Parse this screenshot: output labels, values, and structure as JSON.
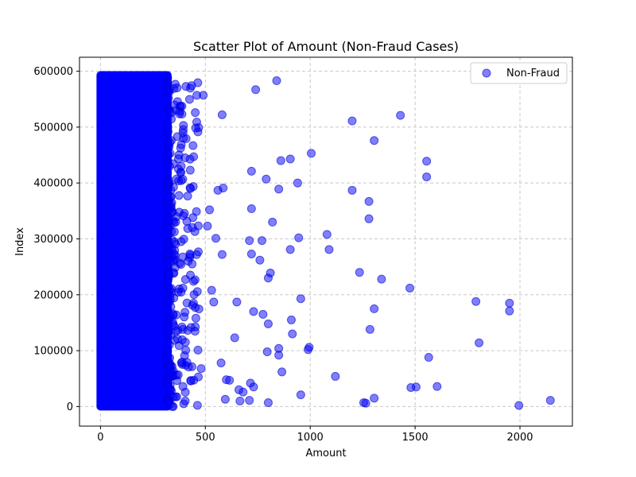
{
  "chart_data": {
    "type": "scatter",
    "title": "Scatter Plot of Amount (Non-Fraud Cases)",
    "xlabel": "Amount",
    "ylabel": "Index",
    "xlim": [
      -100,
      2250
    ],
    "ylim": [
      -35000,
      625000
    ],
    "xticks": [
      0,
      500,
      1000,
      1500,
      2000
    ],
    "yticks": [
      0,
      100000,
      200000,
      300000,
      400000,
      500000,
      600000
    ],
    "grid": true,
    "legend_position": "top-right",
    "colors": {
      "marker_fill": "#0000ff",
      "marker_edge": "#0000cc",
      "grid": "#c8c8c8"
    },
    "dense_band": {
      "x_range": [
        0,
        320
      ],
      "y_range": [
        0,
        593000
      ],
      "description_series": "Non-Fraud"
    },
    "series": [
      {
        "name": "Non-Fraud",
        "x": [
          490,
          740,
          840,
          580,
          1200,
          1430,
          1305,
          1005,
          905,
          860,
          1555,
          720,
          940,
          1555,
          790,
          850,
          560,
          585,
          1200,
          1280,
          520,
          720,
          820,
          510,
          1280,
          945,
          1080,
          550,
          710,
          770,
          580,
          905,
          1090,
          720,
          760,
          810,
          1235,
          800,
          1340,
          1475,
          530,
          955,
          540,
          650,
          1305,
          1790,
          1950,
          1950,
          775,
          910,
          730,
          1285,
          800,
          915,
          640,
          1805,
          995,
          990,
          850,
          795,
          850,
          1565,
          865,
          480,
          575,
          1120,
          600,
          615,
          715,
          730,
          660,
          680,
          955,
          1505,
          1480,
          1605,
          1305,
          595,
          665,
          710,
          800,
          1255,
          1265,
          1995,
          2145
        ],
        "y": [
          557000,
          567000,
          583000,
          522000,
          511000,
          521000,
          476000,
          453000,
          443000,
          440000,
          439000,
          421000,
          400000,
          411000,
          407000,
          389000,
          387000,
          391000,
          387000,
          367000,
          352000,
          354000,
          330000,
          323000,
          336000,
          302000,
          308000,
          301000,
          297000,
          297000,
          272000,
          281000,
          281000,
          273000,
          262000,
          239000,
          240000,
          230000,
          228000,
          212000,
          208000,
          193000,
          187000,
          187000,
          175000,
          188000,
          185000,
          171000,
          165000,
          155000,
          170000,
          138000,
          148000,
          130000,
          123000,
          114000,
          106000,
          102000,
          104000,
          98000,
          92000,
          88000,
          62000,
          68000,
          78000,
          54000,
          48000,
          47000,
          42000,
          35000,
          30000,
          26000,
          21000,
          35000,
          34000,
          36000,
          15000,
          13000,
          10000,
          11000,
          7000,
          7000,
          6000,
          2000,
          11000
        ]
      }
    ]
  }
}
